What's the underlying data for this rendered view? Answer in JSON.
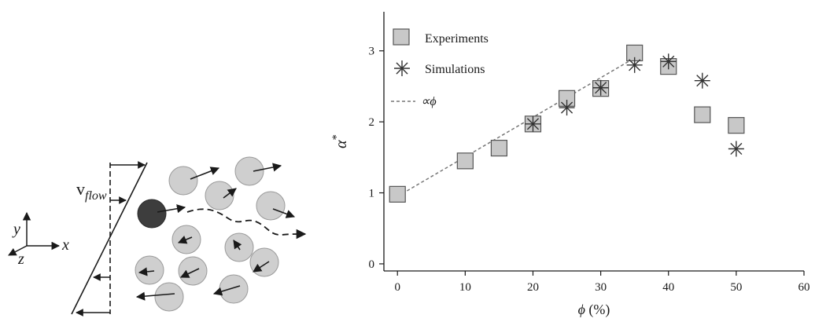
{
  "schematic": {
    "velocity_label_main": "v",
    "velocity_label_sub": "flow",
    "axis_y_label": "y",
    "axis_x_label": "x",
    "axis_z_label": "z"
  },
  "chart_data": {
    "type": "scatter",
    "xlabel_symbol": "ϕ",
    "xlabel_unit": " (%)",
    "ylabel_symbol": "α",
    "ylabel_sup": "*",
    "xlim": [
      -2,
      60
    ],
    "ylim": [
      -0.1,
      3.55
    ],
    "x_ticks": [
      0,
      10,
      20,
      30,
      40,
      50,
      60
    ],
    "y_ticks": [
      0,
      1,
      2,
      3
    ],
    "legend_position": "top-left",
    "grid": false,
    "series": [
      {
        "name": "Experiments",
        "marker": "square",
        "color": "#c8c8c8",
        "x": [
          0,
          10,
          15,
          20,
          25,
          30,
          35,
          40,
          45,
          50
        ],
        "y": [
          0.98,
          1.45,
          1.63,
          1.97,
          2.33,
          2.47,
          2.97,
          2.78,
          2.1,
          1.95
        ]
      },
      {
        "name": "Simulations",
        "marker": "asterisk",
        "color": "#333333",
        "x": [
          20,
          25,
          30,
          35,
          40,
          45,
          50
        ],
        "y": [
          1.97,
          2.2,
          2.48,
          2.8,
          2.85,
          2.58,
          1.62
        ]
      },
      {
        "name": "∝ϕ",
        "marker": "dashed-line",
        "color": "#777777",
        "x": [
          0,
          35
        ],
        "y": [
          0.95,
          2.9
        ]
      }
    ]
  }
}
